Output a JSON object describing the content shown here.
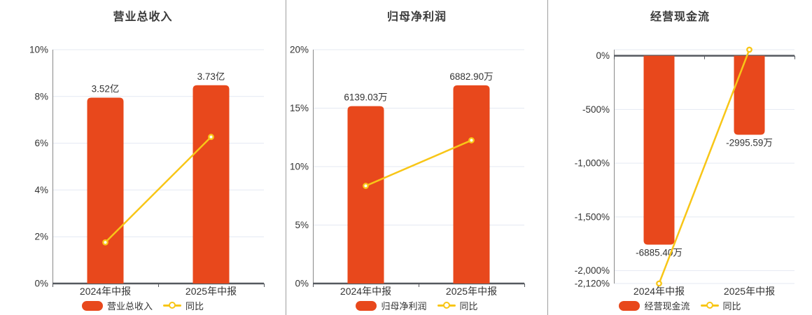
{
  "colors": {
    "bar": "#e8481c",
    "line": "#f8c617",
    "zero_axis": "#55595f",
    "vertical_axis": "#888888",
    "grid": "#e4e9f2",
    "text": "#333333",
    "title": "#3a3a3a",
    "divider": "#9e9e9e",
    "marker_fill": "#ffffff"
  },
  "chart_data": [
    {
      "type": "bar",
      "title": "营业总收入",
      "categories": [
        "2024年中报",
        "2025年中报"
      ],
      "bar_series": {
        "name": "营业总收入",
        "value_labels": [
          "3.52亿",
          "3.73亿"
        ],
        "axis_heights_pct": [
          7.95,
          8.48
        ]
      },
      "line_series": {
        "name": "同比",
        "values_pct": [
          1.76,
          6.27
        ]
      },
      "y_axis": {
        "min": 0,
        "max": 10,
        "tick_values": [
          0,
          2,
          4,
          6,
          8,
          10
        ],
        "tick_labels": [
          "0%",
          "2%",
          "4%",
          "6%",
          "8%",
          "10%"
        ],
        "extra_top_gridline": false
      },
      "legend_position": "bottom",
      "grid": true
    },
    {
      "type": "bar",
      "title": "归母净利润",
      "categories": [
        "2024年中报",
        "2025年中报"
      ],
      "bar_series": {
        "name": "归母净利润",
        "value_labels": [
          "6139.03万",
          "6882.90万"
        ],
        "axis_heights_pct": [
          15.17,
          16.95
        ]
      },
      "line_series": {
        "name": "同比",
        "values_pct": [
          8.35,
          12.25
        ]
      },
      "y_axis": {
        "min": 0,
        "max": 20,
        "tick_values": [
          0,
          5,
          10,
          15,
          20
        ],
        "tick_labels": [
          "0%",
          "5%",
          "10%",
          "15%",
          "20%"
        ],
        "extra_top_gridline": false
      },
      "legend_position": "bottom",
      "grid": true
    },
    {
      "type": "bar",
      "title": "经营现金流",
      "categories": [
        "2024年中报",
        "2025年中报"
      ],
      "bar_series": {
        "name": "经营现金流",
        "value_labels": [
          "-6885.40万",
          "-2995.59万"
        ],
        "axis_heights_pct": [
          -1758,
          -735
        ]
      },
      "line_series": {
        "name": "同比",
        "values_pct": [
          -2120.07,
          56.49
        ]
      },
      "y_axis": {
        "min": -2120.07,
        "max": 56.49,
        "tick_values": [
          0,
          -500,
          -1000,
          -1500,
          -2000,
          -2120.07
        ],
        "tick_labels": [
          "0%",
          "-500%",
          "-1,000%",
          "-1,500%",
          "-2,000%",
          "-2,120%"
        ],
        "extra_top_gridline": true
      },
      "legend_position": "bottom",
      "grid": true
    }
  ]
}
